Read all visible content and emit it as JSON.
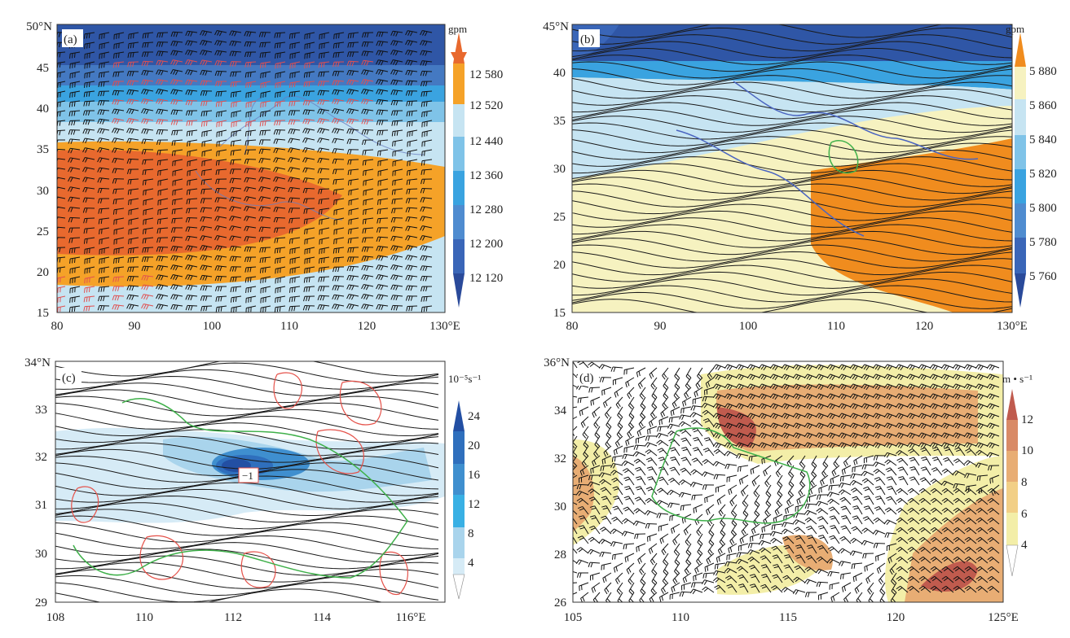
{
  "chart_data": [
    {
      "type": "heatmap",
      "panel_label": "(a)",
      "field": "geopotential height (contour fill) with wind barbs",
      "x_ticks": [
        "80",
        "90",
        "100",
        "110",
        "120",
        "130°E"
      ],
      "y_ticks": [
        "15",
        "20",
        "25",
        "30",
        "35",
        "40",
        "45",
        "50°N"
      ],
      "xlim": [
        80,
        130
      ],
      "ylim": [
        15,
        50
      ],
      "colorbar": {
        "unit": "gpm",
        "labels": [
          "12 580",
          "12 520",
          "12 440",
          "12 360",
          "12 280",
          "12 200",
          "12 120"
        ],
        "levels": [
          12120,
          12200,
          12280,
          12360,
          12440,
          12520,
          12580
        ],
        "colors": [
          "#2a4a9a",
          "#3a66b8",
          "#4f8cd0",
          "#3aa3e0",
          "#7fc3e8",
          "#c6e4f2",
          "#f5a228",
          "#e8692e"
        ]
      },
      "overlays": [
        "black wind barbs",
        "red wind barbs (jet core)"
      ]
    },
    {
      "type": "heatmap",
      "panel_label": "(b)",
      "field": "geopotential height (contour fill) with streamlines",
      "x_ticks": [
        "80",
        "90",
        "100",
        "110",
        "120",
        "130°E"
      ],
      "y_ticks": [
        "15",
        "20",
        "25",
        "30",
        "35",
        "40",
        "45°N"
      ],
      "xlim": [
        80,
        130
      ],
      "ylim": [
        15,
        45
      ],
      "colorbar": {
        "unit": "gpm",
        "labels": [
          "5 880",
          "5 860",
          "5 840",
          "5 820",
          "5 800",
          "5 780",
          "5 760"
        ],
        "levels": [
          5760,
          5780,
          5800,
          5820,
          5840,
          5860,
          5880
        ],
        "colors": [
          "#2a4a9a",
          "#3a66b8",
          "#4f8cd0",
          "#3aa3e0",
          "#7fc3e8",
          "#c6e4f2",
          "#f6f2c0",
          "#f08c1e"
        ]
      },
      "overlays": [
        "black streamlines"
      ]
    },
    {
      "type": "heatmap",
      "panel_label": "(c)",
      "field": "relative vorticity (fill) with streamlines and red contours",
      "x_ticks": [
        "108",
        "110",
        "112",
        "114",
        "116°E"
      ],
      "y_ticks": [
        "29",
        "30",
        "31",
        "32",
        "33",
        "34°N"
      ],
      "xlim": [
        108,
        116.8
      ],
      "ylim": [
        29,
        34
      ],
      "colorbar": {
        "unit": "10⁻⁵s⁻¹",
        "labels": [
          "24",
          "20",
          "16",
          "12",
          "8",
          "4"
        ],
        "levels": [
          4,
          8,
          12,
          16,
          20,
          24
        ],
        "colors": [
          "#ffffff",
          "#d6ebf6",
          "#a9d4ec",
          "#39b0e4",
          "#3f8fcf",
          "#2f6fbd",
          "#234fa3"
        ]
      },
      "annotation": "−1",
      "overlays": [
        "black streamlines",
        "red contours",
        "green province boundary"
      ]
    },
    {
      "type": "heatmap",
      "panel_label": "(d)",
      "field": "wind speed (fill) with wind barbs",
      "x_ticks": [
        "105",
        "110",
        "115",
        "120",
        "125°E"
      ],
      "y_ticks": [
        "26",
        "28",
        "30",
        "32",
        "34",
        "36°N"
      ],
      "xlim": [
        105,
        125
      ],
      "ylim": [
        26,
        36
      ],
      "colorbar": {
        "unit": "m • s⁻¹",
        "labels": [
          "12",
          "10",
          "8",
          "6",
          "4"
        ],
        "levels": [
          4,
          6,
          8,
          10,
          12
        ],
        "colors": [
          "#ffffff",
          "#f3eea8",
          "#f2cf86",
          "#e8ad74",
          "#d98a66",
          "#c05b4e"
        ]
      },
      "overlays": [
        "black wind barbs",
        "green province boundary"
      ]
    }
  ]
}
